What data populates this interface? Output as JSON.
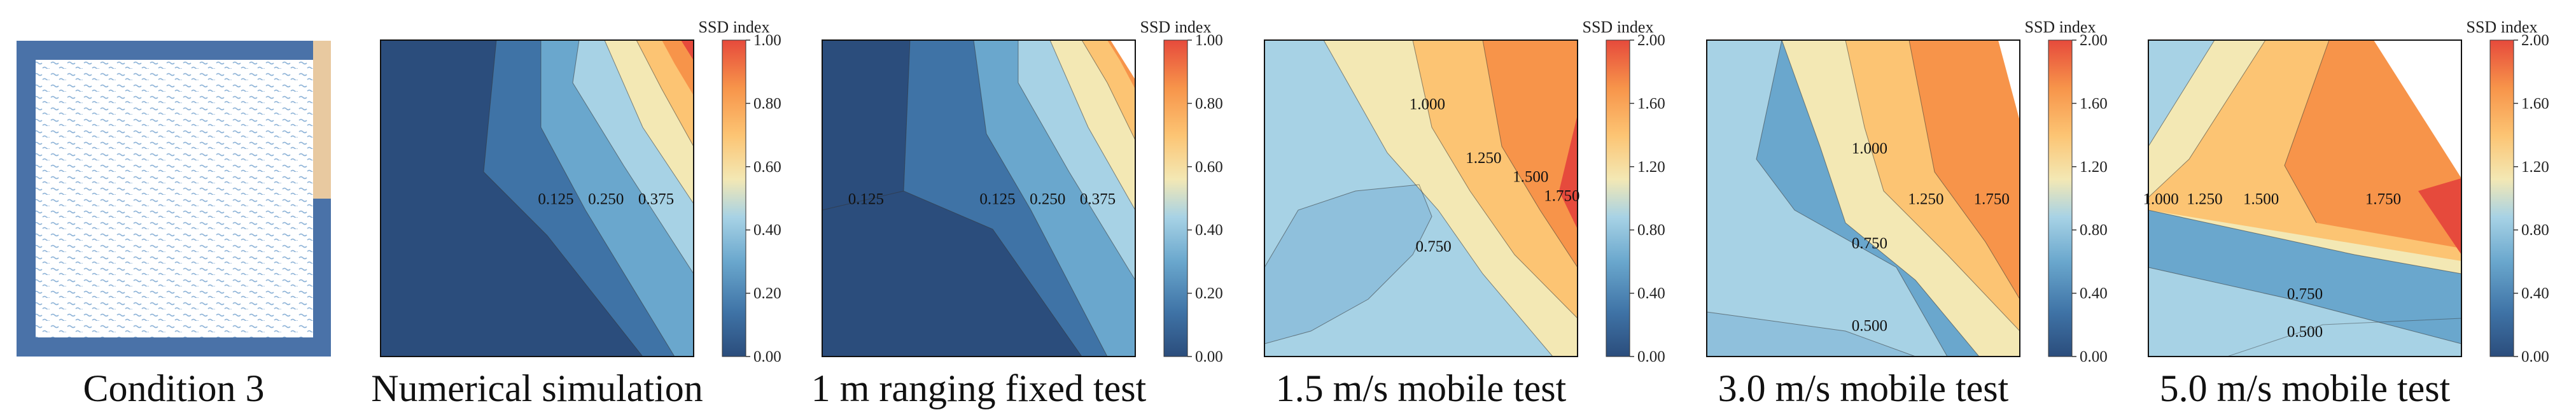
{
  "condition": {
    "caption": "Condition 3",
    "colors": {
      "frame": "#4a72a8",
      "water": "#ffffff",
      "wave": "#8fb4d8",
      "inlet": "#e8c9a0"
    }
  },
  "colormap": [
    "#2b4d7c",
    "#3f73a6",
    "#6aa7cd",
    "#a7d2e5",
    "#f3e8b4",
    "#fcc473",
    "#f7944a",
    "#e64a3c"
  ],
  "chart_data": [
    {
      "type": "heatmap",
      "caption": "Numerical simulation",
      "colorbar": {
        "title": "SSD index",
        "min": 0,
        "max": 1.0,
        "ticks": [
          "0.00",
          "0.20",
          "0.40",
          "0.60",
          "0.80",
          "1.00"
        ]
      },
      "contour_labels": [
        {
          "text": "0.125",
          "x": 0.56,
          "y": 0.5
        },
        {
          "text": "0.250",
          "x": 0.72,
          "y": 0.5
        },
        {
          "text": "0.375",
          "x": 0.88,
          "y": 0.5
        }
      ]
    },
    {
      "type": "heatmap",
      "caption": "1 m ranging fixed test",
      "colorbar": {
        "title": "SSD index",
        "min": 0,
        "max": 1.0,
        "ticks": [
          "0.00",
          "0.20",
          "0.40",
          "0.60",
          "0.80",
          "1.00"
        ]
      },
      "contour_labels": [
        {
          "text": "0.125",
          "x": 0.14,
          "y": 0.5
        },
        {
          "text": "0.125",
          "x": 0.56,
          "y": 0.5
        },
        {
          "text": "0.250",
          "x": 0.72,
          "y": 0.5
        },
        {
          "text": "0.375",
          "x": 0.88,
          "y": 0.5
        }
      ]
    },
    {
      "type": "heatmap",
      "caption": "1.5 m/s mobile test",
      "colorbar": {
        "title": "SSD index",
        "min": 0,
        "max": 2.0,
        "ticks": [
          "0.00",
          "0.40",
          "0.80",
          "1.20",
          "1.60",
          "2.00"
        ]
      },
      "contour_labels": [
        {
          "text": "1.000",
          "x": 0.52,
          "y": 0.2
        },
        {
          "text": "1.250",
          "x": 0.7,
          "y": 0.37
        },
        {
          "text": "1.500",
          "x": 0.85,
          "y": 0.43
        },
        {
          "text": "1.750",
          "x": 0.95,
          "y": 0.49
        },
        {
          "text": "0.750",
          "x": 0.54,
          "y": 0.65
        }
      ]
    },
    {
      "type": "heatmap",
      "caption": "3.0 m/s mobile test",
      "colorbar": {
        "title": "SSD index",
        "min": 0,
        "max": 2.0,
        "ticks": [
          "0.00",
          "0.40",
          "0.80",
          "1.20",
          "1.60",
          "2.00"
        ]
      },
      "contour_labels": [
        {
          "text": "1.000",
          "x": 0.52,
          "y": 0.34
        },
        {
          "text": "1.250",
          "x": 0.7,
          "y": 0.5
        },
        {
          "text": "1.750",
          "x": 0.91,
          "y": 0.5
        },
        {
          "text": "0.750",
          "x": 0.52,
          "y": 0.64
        },
        {
          "text": "0.500",
          "x": 0.52,
          "y": 0.9
        }
      ]
    },
    {
      "type": "heatmap",
      "caption": "5.0 m/s mobile test",
      "colorbar": {
        "title": "SSD index",
        "min": 0,
        "max": 2.0,
        "ticks": [
          "0.00",
          "0.40",
          "0.80",
          "1.20",
          "1.60",
          "2.00"
        ]
      },
      "contour_labels": [
        {
          "text": "1.000",
          "x": 0.04,
          "y": 0.5
        },
        {
          "text": "1.250",
          "x": 0.18,
          "y": 0.5
        },
        {
          "text": "1.500",
          "x": 0.36,
          "y": 0.5
        },
        {
          "text": "1.750",
          "x": 0.75,
          "y": 0.5
        },
        {
          "text": "0.750",
          "x": 0.5,
          "y": 0.8
        },
        {
          "text": "0.500",
          "x": 0.5,
          "y": 0.92
        }
      ]
    }
  ]
}
